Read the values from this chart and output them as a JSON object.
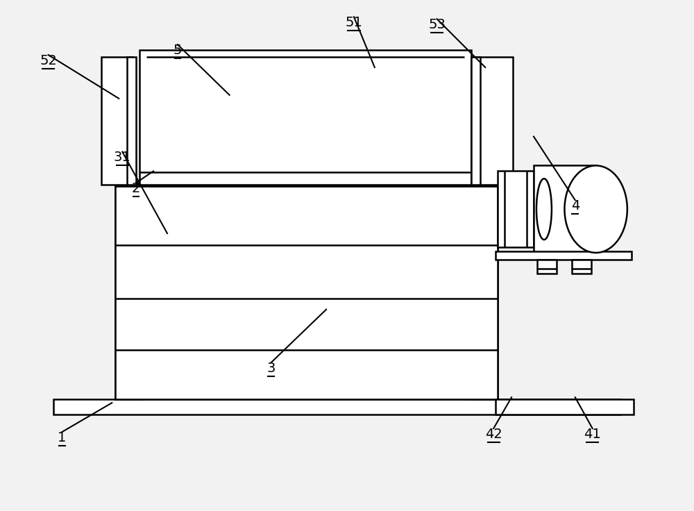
{
  "bg_color": "#f2f2f2",
  "line_color": "#000000",
  "lw": 1.8,
  "lw_thick": 4.0,
  "fig_w": 10.0,
  "fig_h": 7.36,
  "label_fs": 14
}
